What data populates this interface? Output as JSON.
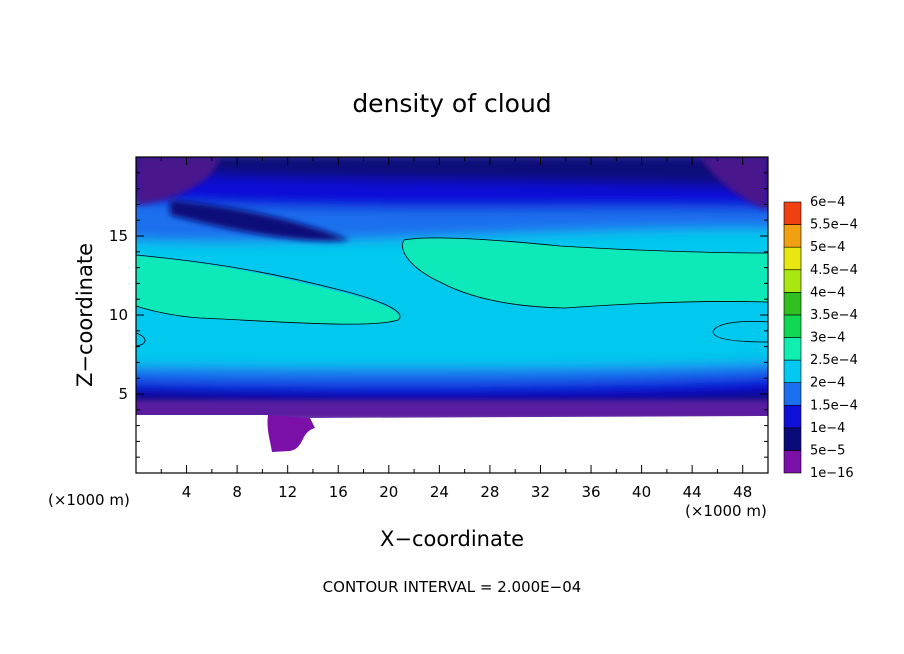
{
  "chart_data": {
    "type": "contour",
    "title": "density of cloud",
    "xlabel": "X−coordinate",
    "ylabel": "Z−coordinate",
    "x_unit_left": "(×1000 m)",
    "x_unit_right": "(×1000 m)",
    "xlim": [
      0,
      50
    ],
    "ylim": [
      0,
      20
    ],
    "x_ticks": [
      4,
      8,
      12,
      16,
      20,
      24,
      28,
      32,
      36,
      40,
      44,
      48
    ],
    "x_tick_labels": [
      "4",
      "8",
      "12",
      "16",
      "20",
      "24",
      "28",
      "32",
      "36",
      "40",
      "44",
      "48"
    ],
    "y_ticks": [
      5,
      10,
      15
    ],
    "y_tick_labels": [
      "5",
      "10",
      "15"
    ],
    "colorbar": {
      "levels": [
        "1e−16",
        "5e−5",
        "1e−4",
        "1.5e−4",
        "2e−4",
        "2.5e−4",
        "3e−4",
        "3.5e−4",
        "4e−4",
        "4.5e−4",
        "5e−4",
        "5.5e−4",
        "6e−4"
      ],
      "colors": [
        "#7a10a8",
        "#0a0a7a",
        "#1010d8",
        "#1a70ee",
        "#00c8ee",
        "#10eeb0",
        "#10d850",
        "#30c020",
        "#a8e810",
        "#e8e810",
        "#f0a010",
        "#f04010",
        "#f0a0a0"
      ]
    },
    "contour_interval_label": "CONTOUR INTERVAL = 2.000E−04",
    "contour_level": 0.0002
  }
}
